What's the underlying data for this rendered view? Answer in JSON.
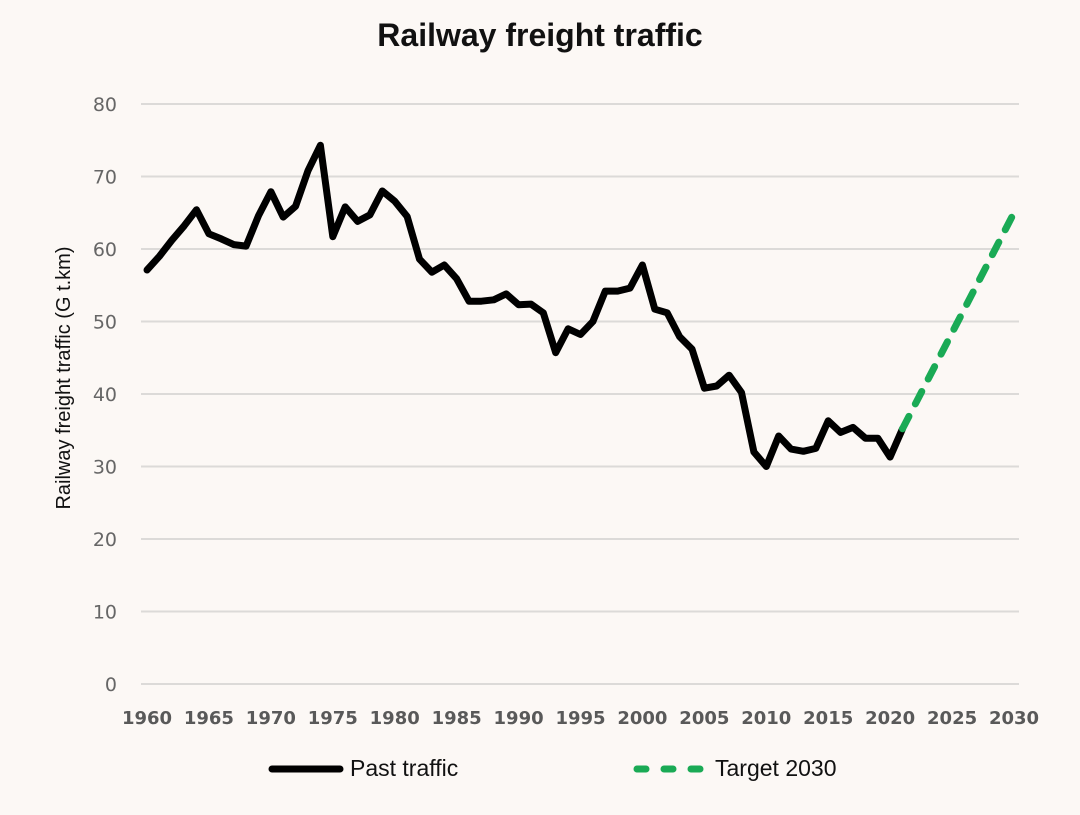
{
  "chart_data": {
    "type": "line",
    "title": "Railway freight traffic",
    "xlabel": "",
    "ylabel": "Railway freight traffic (G t.km)",
    "xlim": [
      1960,
      2030
    ],
    "ylim": [
      0,
      80
    ],
    "x_ticks": [
      "1960",
      "1965",
      "1970",
      "1975",
      "1980",
      "1985",
      "1990",
      "1995",
      "2000",
      "2005",
      "2010",
      "2015",
      "2020",
      "2025",
      "2030"
    ],
    "y_ticks": [
      "0",
      "10",
      "20",
      "30",
      "40",
      "50",
      "60",
      "70",
      "80"
    ],
    "grid": true,
    "legend_position": "bottom",
    "series": [
      {
        "name": "Past traffic",
        "style": "solid",
        "color": "#000000",
        "x": [
          1960,
          1961,
          1962,
          1963,
          1964,
          1965,
          1966,
          1967,
          1968,
          1969,
          1970,
          1971,
          1972,
          1973,
          1974,
          1975,
          1976,
          1977,
          1978,
          1979,
          1980,
          1981,
          1982,
          1983,
          1984,
          1985,
          1986,
          1987,
          1988,
          1989,
          1990,
          1991,
          1992,
          1993,
          1994,
          1995,
          1996,
          1997,
          1998,
          1999,
          2000,
          2001,
          2002,
          2003,
          2004,
          2005,
          2006,
          2007,
          2008,
          2009,
          2010,
          2011,
          2012,
          2013,
          2014,
          2015,
          2016,
          2017,
          2018,
          2019,
          2020,
          2021
        ],
        "values": [
          57.1,
          59.0,
          61.2,
          63.2,
          65.4,
          62.1,
          61.4,
          60.6,
          60.4,
          64.6,
          67.9,
          64.4,
          65.9,
          70.8,
          74.3,
          61.7,
          65.8,
          63.8,
          64.7,
          68.0,
          66.6,
          64.5,
          58.6,
          56.8,
          57.8,
          55.9,
          52.8,
          52.8,
          53.0,
          53.8,
          52.3,
          52.4,
          51.2,
          45.7,
          49.0,
          48.2,
          50.0,
          54.2,
          54.2,
          54.6,
          57.8,
          51.7,
          51.2,
          47.9,
          46.2,
          40.8,
          41.1,
          42.6,
          40.2,
          32.0,
          30.0,
          34.2,
          32.4,
          32.1,
          32.5,
          36.3,
          34.7,
          35.4,
          33.9,
          33.9,
          31.3,
          35.2
        ]
      },
      {
        "name": "Target 2030",
        "style": "dashed",
        "color": "#1aaa55",
        "x": [
          2021,
          2030
        ],
        "values": [
          35.2,
          65.0
        ]
      }
    ]
  },
  "legend": {
    "items": [
      {
        "label": "Past traffic",
        "icon": "solid-line-swatch"
      },
      {
        "label": "Target 2030",
        "icon": "dashed-line-swatch"
      }
    ]
  },
  "colors": {
    "background": "#fcf8f5",
    "past": "#000000",
    "target": "#1aaa55",
    "grid": "#dcdad8"
  }
}
